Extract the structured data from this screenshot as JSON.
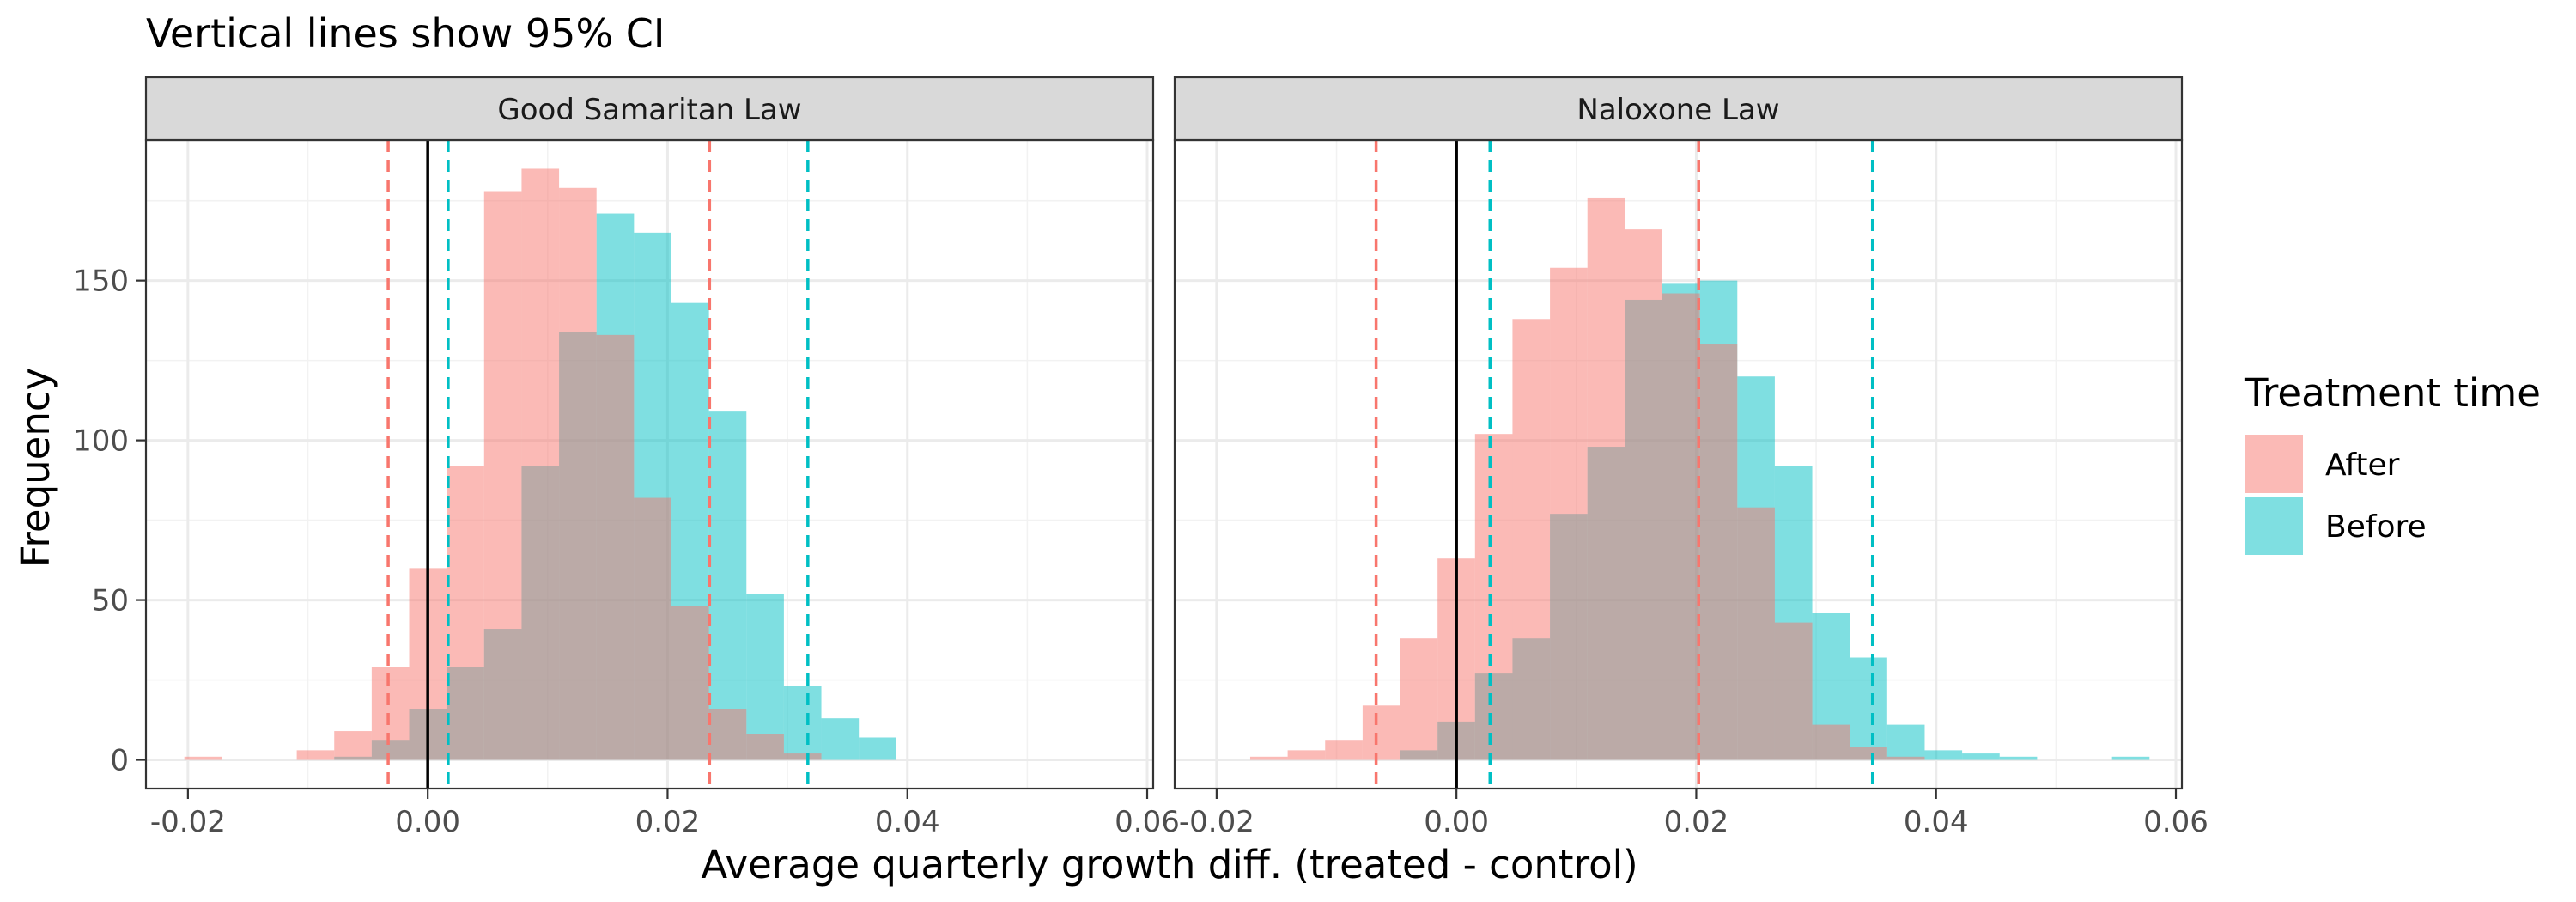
{
  "chart_data": {
    "type": "histogram",
    "title": "Vertical lines show 95% CI",
    "xlabel": "Average quarterly growth diff. (treated - control)",
    "ylabel": "Frequency",
    "xlim": [
      -0.0235,
      0.0605
    ],
    "ylim": [
      -9,
      194
    ],
    "x_ticks": [
      -0.02,
      0.0,
      0.02,
      0.04,
      0.06
    ],
    "x_tick_labels": [
      "-0.02",
      "0.00",
      "0.02",
      "0.04",
      "0.06"
    ],
    "y_ticks": [
      0,
      50,
      100,
      150
    ],
    "y_tick_labels": [
      "0",
      "50",
      "100",
      "150"
    ],
    "grid": true,
    "bin_width": 0.003125,
    "zero_line": 0.0,
    "legend": {
      "title": "Treatment time",
      "position": "right",
      "entries": [
        {
          "label": "After",
          "color": "#F8766D"
        },
        {
          "label": "Before",
          "color": "#00BFC4"
        }
      ]
    },
    "panels": [
      {
        "strip": "Good Samaritan Law",
        "series": [
          {
            "name": "After",
            "color": "#F8766D",
            "bin_start": -0.0203,
            "counts": [
              1,
              0,
              0,
              3,
              9,
              29,
              60,
              92,
              178,
              185,
              179,
              133,
              82,
              48,
              16,
              8,
              2
            ],
            "ci": [
              -0.0033,
              0.0235
            ]
          },
          {
            "name": "Before",
            "color": "#00BFC4",
            "bin_start": -0.0078,
            "counts": [
              1,
              6,
              16,
              29,
              41,
              92,
              134,
              171,
              165,
              143,
              109,
              52,
              23,
              13,
              7
            ],
            "ci": [
              0.0017,
              0.0317
            ]
          }
        ]
      },
      {
        "strip": "Naloxone Law",
        "series": [
          {
            "name": "After",
            "color": "#F8766D",
            "bin_start": -0.0172,
            "counts": [
              1,
              3,
              6,
              17,
              38,
              63,
              102,
              138,
              154,
              176,
              166,
              146,
              130,
              79,
              43,
              11,
              4,
              1
            ],
            "ci": [
              -0.0067,
              0.0202
            ]
          },
          {
            "name": "Before",
            "color": "#00BFC4",
            "bin_start": -0.0047,
            "counts": [
              3,
              12,
              27,
              38,
              77,
              98,
              144,
              149,
              150,
              120,
              92,
              46,
              32,
              11,
              3,
              2,
              1,
              0,
              0,
              1
            ],
            "ci": [
              0.0028,
              0.0347
            ]
          }
        ]
      }
    ]
  }
}
